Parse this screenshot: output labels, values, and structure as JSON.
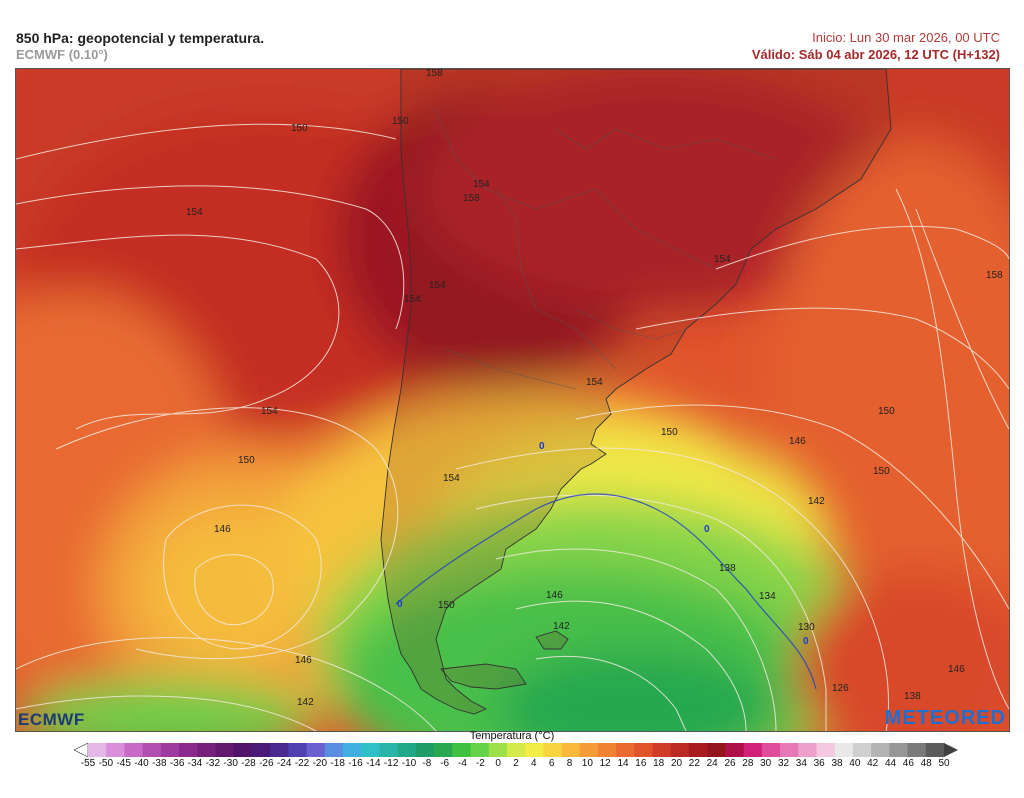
{
  "header": {
    "title": "850 hPa: geopotencial y temperatura.",
    "model": "ECMWF (0.10°)",
    "run": "Inicio: Lun 30 mar 2026, 00 UTC",
    "valid": "Válido: Sáb 04 abr 2026, 12 UTC (H+132)"
  },
  "map": {
    "region": "Sudamérica austral",
    "isohypse_labels": [
      {
        "text": "158"
      },
      {
        "text": "150"
      },
      {
        "text": "150"
      },
      {
        "text": "154"
      },
      {
        "text": "158"
      },
      {
        "text": "154"
      },
      {
        "text": "154"
      },
      {
        "text": "154"
      },
      {
        "text": "154"
      },
      {
        "text": "158"
      },
      {
        "text": "154"
      },
      {
        "text": "154"
      },
      {
        "text": "150"
      },
      {
        "text": "150"
      },
      {
        "text": "154"
      },
      {
        "text": "146"
      },
      {
        "text": "146"
      },
      {
        "text": "150"
      },
      {
        "text": "150"
      },
      {
        "text": "142"
      },
      {
        "text": "138"
      },
      {
        "text": "146"
      },
      {
        "text": "150"
      },
      {
        "text": "146"
      },
      {
        "text": "142"
      },
      {
        "text": "134"
      },
      {
        "text": "130"
      },
      {
        "text": "126"
      },
      {
        "text": "146"
      },
      {
        "text": "142"
      },
      {
        "text": "138"
      }
    ],
    "zero_isotherm_labels": [
      {
        "text": "0"
      },
      {
        "text": "0"
      },
      {
        "text": "0"
      },
      {
        "text": "0"
      }
    ]
  },
  "logos": {
    "left": "ECMWF",
    "right": "METEORED"
  },
  "legend": {
    "title": "Temperatura (°C)",
    "ticks": [
      "-55",
      "-50",
      "-45",
      "-40",
      "-38",
      "-36",
      "-34",
      "-32",
      "-30",
      "-28",
      "-26",
      "-24",
      "-22",
      "-20",
      "-18",
      "-16",
      "-14",
      "-12",
      "-10",
      "-8",
      "-6",
      "-4",
      "-2",
      "0",
      "2",
      "4",
      "6",
      "8",
      "10",
      "12",
      "14",
      "16",
      "18",
      "20",
      "22",
      "24",
      "26",
      "28",
      "30",
      "32",
      "34",
      "36",
      "38",
      "40",
      "42",
      "44",
      "46",
      "48",
      "50"
    ],
    "colors": [
      "#ffffff",
      "#e6b7e6",
      "#d98fd9",
      "#c76bc7",
      "#b34fb3",
      "#9e3aa0",
      "#8a2a8f",
      "#75207d",
      "#62186c",
      "#52136a",
      "#4a1a78",
      "#4a2a90",
      "#5040b0",
      "#6a60d0",
      "#5a8ee0",
      "#40b0e0",
      "#30c0c8",
      "#28b4a8",
      "#20a888",
      "#1e9c68",
      "#2aa850",
      "#40c040",
      "#66d248",
      "#9ee04a",
      "#d4ea48",
      "#f2ec46",
      "#f7d440",
      "#f7b83c",
      "#f59c38",
      "#f08234",
      "#ea6a30",
      "#e0542c",
      "#d03c28",
      "#bc2a24",
      "#a81c20",
      "#94141c",
      "#b0104a",
      "#d0207a",
      "#e04c9c",
      "#e678b8",
      "#eea0cc",
      "#f4c8e0",
      "#e8e8e8",
      "#d0d0d0",
      "#b4b4b4",
      "#969696",
      "#7a7a7a",
      "#5c5c5c",
      "#404040"
    ]
  }
}
